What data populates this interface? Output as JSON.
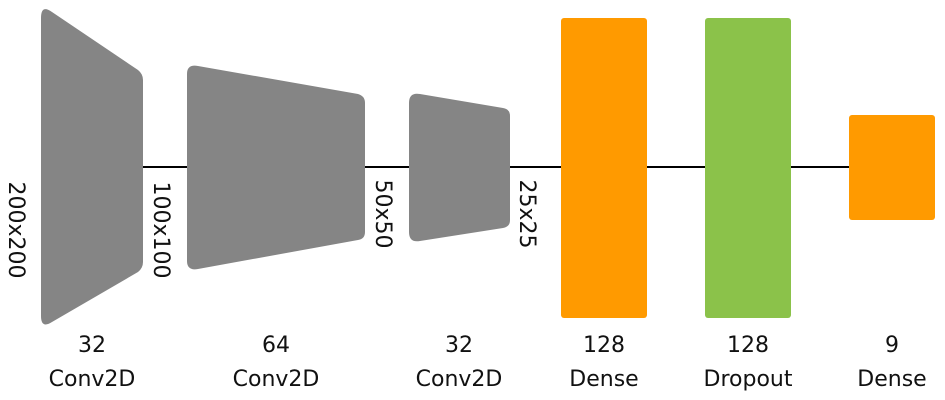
{
  "diagram": {
    "colors": {
      "conv": "#858585",
      "dense": "#ff9a00",
      "dropout": "#8bc24a",
      "connector": "#000000",
      "text": "#111111"
    },
    "layers": [
      {
        "units": "32",
        "type": "Conv2D",
        "input_dim": "200x200"
      },
      {
        "units": "64",
        "type": "Conv2D",
        "input_dim": "100x100"
      },
      {
        "units": "32",
        "type": "Conv2D",
        "input_dim": "50x50"
      },
      {
        "units": "128",
        "type": "Dense",
        "input_dim": "25x25"
      },
      {
        "units": "128",
        "type": "Dropout"
      },
      {
        "units": "9",
        "type": "Dense"
      }
    ]
  }
}
